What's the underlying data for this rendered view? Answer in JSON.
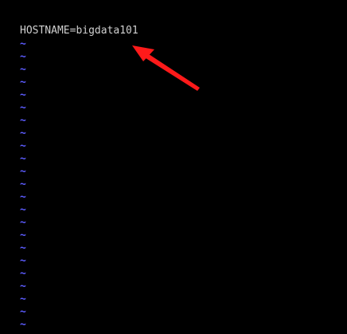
{
  "editor": {
    "line1": "HOSTNAME=bigdata101",
    "empty_line_marker": "~",
    "empty_line_count": 24
  },
  "annotation": {
    "arrow_color": "#ff1a1a",
    "arrow_target": "line1"
  },
  "colors": {
    "background": "#000000",
    "text": "#d0d0d0",
    "tilde": "#5c5cff"
  },
  "icons": {
    "annotation": "red-arrow-icon"
  }
}
